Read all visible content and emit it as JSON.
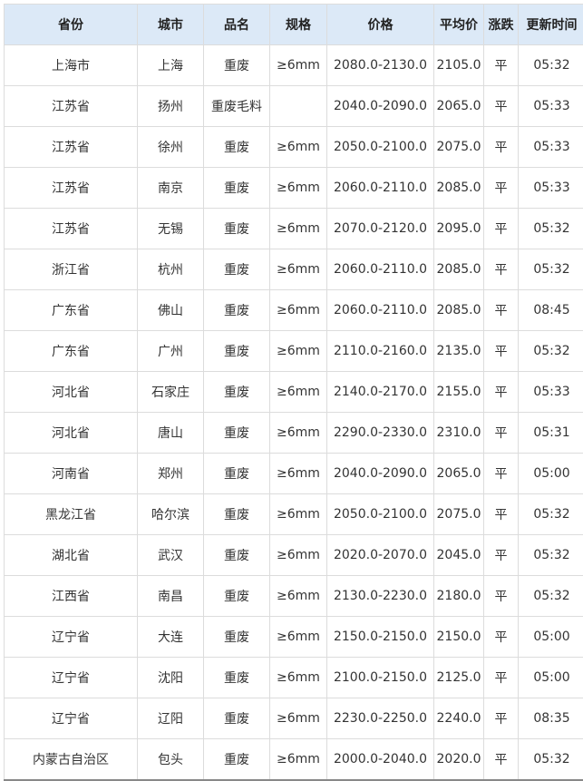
{
  "headers": [
    "省份",
    "城市",
    "品名",
    "规格",
    "价格",
    "平均价",
    "涨跌",
    "更新时间"
  ],
  "rows": [
    [
      "上海市",
      "上海",
      "重废",
      "≥6mm",
      "2080.0-2130.0",
      "2105.0",
      "平",
      "05:32"
    ],
    [
      "江苏省",
      "扬州",
      "重废毛料",
      "",
      "2040.0-2090.0",
      "2065.0",
      "平",
      "05:33"
    ],
    [
      "江苏省",
      "徐州",
      "重废",
      "≥6mm",
      "2050.0-2100.0",
      "2075.0",
      "平",
      "05:33"
    ],
    [
      "江苏省",
      "南京",
      "重废",
      "≥6mm",
      "2060.0-2110.0",
      "2085.0",
      "平",
      "05:33"
    ],
    [
      "江苏省",
      "无锡",
      "重废",
      "≥6mm",
      "2070.0-2120.0",
      "2095.0",
      "平",
      "05:32"
    ],
    [
      "浙江省",
      "杭州",
      "重废",
      "≥6mm",
      "2060.0-2110.0",
      "2085.0",
      "平",
      "05:32"
    ],
    [
      "广东省",
      "佛山",
      "重废",
      "≥6mm",
      "2060.0-2110.0",
      "2085.0",
      "平",
      "08:45"
    ],
    [
      "广东省",
      "广州",
      "重废",
      "≥6mm",
      "2110.0-2160.0",
      "2135.0",
      "平",
      "05:32"
    ],
    [
      "河北省",
      "石家庄",
      "重废",
      "≥6mm",
      "2140.0-2170.0",
      "2155.0",
      "平",
      "05:33"
    ],
    [
      "河北省",
      "唐山",
      "重废",
      "≥6mm",
      "2290.0-2330.0",
      "2310.0",
      "平",
      "05:31"
    ],
    [
      "河南省",
      "郑州",
      "重废",
      "≥6mm",
      "2040.0-2090.0",
      "2065.0",
      "平",
      "05:00"
    ],
    [
      "黑龙江省",
      "哈尔滨",
      "重废",
      "≥6mm",
      "2050.0-2100.0",
      "2075.0",
      "平",
      "05:32"
    ],
    [
      "湖北省",
      "武汉",
      "重废",
      "≥6mm",
      "2020.0-2070.0",
      "2045.0",
      "平",
      "05:32"
    ],
    [
      "江西省",
      "南昌",
      "重废",
      "≥6mm",
      "2130.0-2230.0",
      "2180.0",
      "平",
      "05:32"
    ],
    [
      "辽宁省",
      "大连",
      "重废",
      "≥6mm",
      "2150.0-2150.0",
      "2150.0",
      "平",
      "05:00"
    ],
    [
      "辽宁省",
      "沈阳",
      "重废",
      "≥6mm",
      "2100.0-2150.0",
      "2125.0",
      "平",
      "05:00"
    ],
    [
      "辽宁省",
      "辽阳",
      "重废",
      "≥6mm",
      "2230.0-2250.0",
      "2240.0",
      "平",
      "08:35"
    ],
    [
      "内蒙古自治区",
      "包头",
      "重废",
      "≥6mm",
      "2000.0-2040.0",
      "2020.0",
      "平",
      "05:32"
    ]
  ]
}
